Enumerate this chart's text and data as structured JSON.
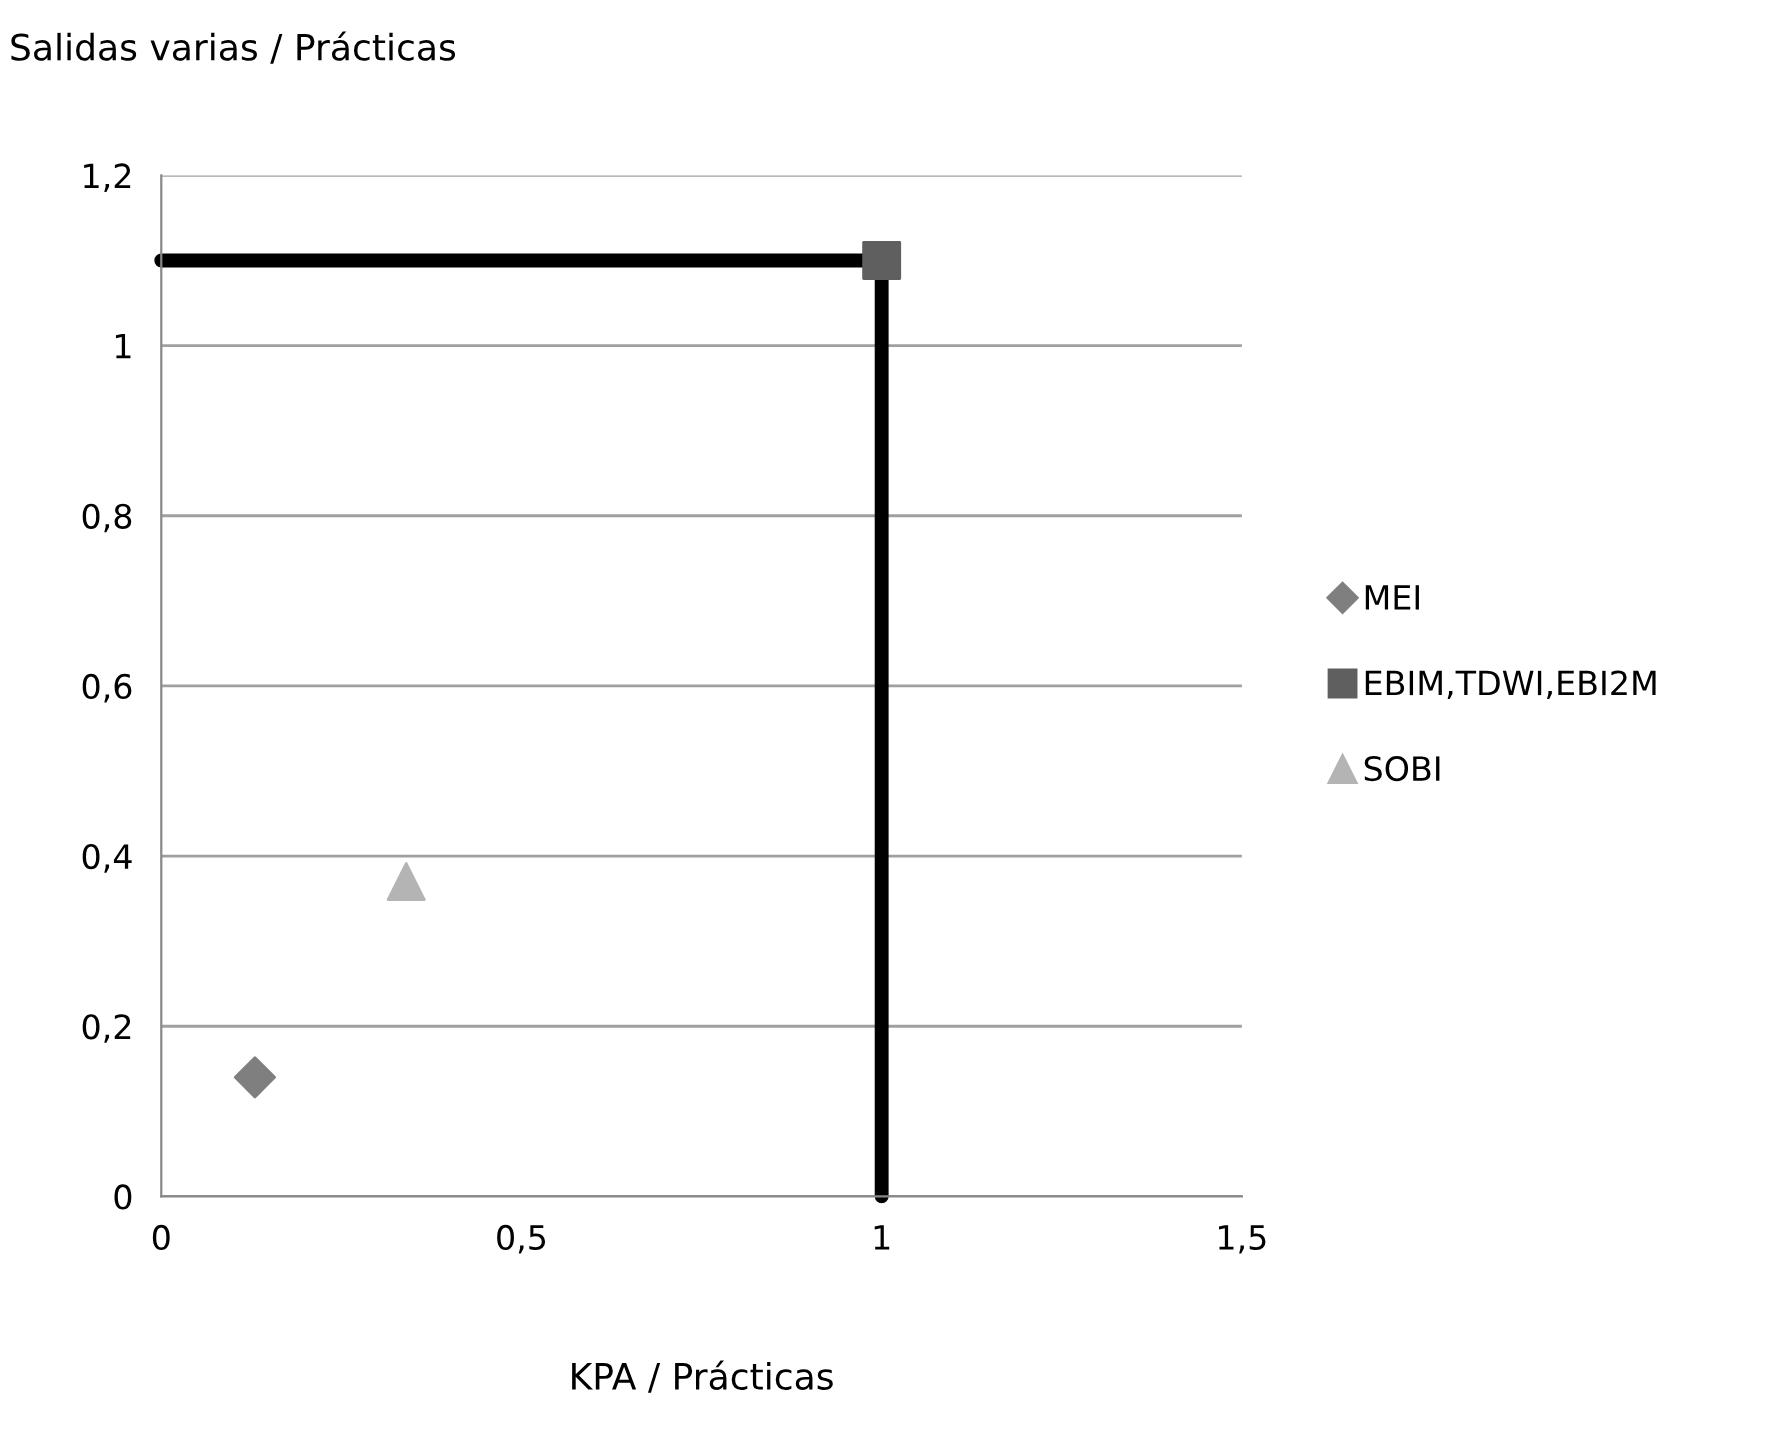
{
  "chart_data": {
    "type": "scatter",
    "ylabel": "Salidas varias / Prácticas",
    "xlabel": "KPA / Prácticas",
    "xlim": [
      0,
      1.5
    ],
    "ylim": [
      0,
      1.2
    ],
    "xticks": [
      0,
      {
        "value": 0.5,
        "label": "0,5"
      },
      1,
      {
        "value": 1.5,
        "label": "1,5"
      }
    ],
    "yticks": [
      0,
      {
        "value": 0.2,
        "label": "0,2"
      },
      {
        "value": 0.4,
        "label": "0,4"
      },
      {
        "value": 0.6,
        "label": "0,6"
      },
      {
        "value": 0.8,
        "label": "0,8"
      },
      1,
      {
        "value": 1.2,
        "label": "1,2"
      }
    ],
    "grid": "y",
    "legend": "right",
    "series": [
      {
        "type": "line",
        "x": [
          0,
          1,
          1
        ],
        "values": [
          1.1,
          1.1,
          0
        ],
        "color": "#000000",
        "marker": "none",
        "line_style": "solid"
      },
      {
        "name": "MEI",
        "x": [
          0.13
        ],
        "values": [
          0.14
        ],
        "color": "#7f7f7f",
        "marker": "diamond"
      },
      {
        "name": "EBIM,TDWI,EBI2M",
        "x": [
          1.0
        ],
        "values": [
          1.1
        ],
        "color": "#5f5f5f",
        "marker": "square"
      },
      {
        "name": "SOBI",
        "x": [
          0.34
        ],
        "values": [
          0.37
        ],
        "color": "#b4b4b4",
        "marker": "triangle"
      }
    ]
  }
}
